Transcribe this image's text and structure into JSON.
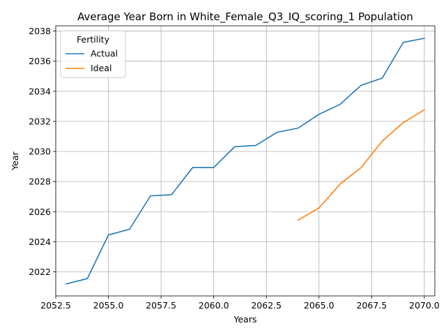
{
  "chart_data": {
    "type": "line",
    "title": "Average Year Born in White_Female_Q3_IQ_scoring_1 Population",
    "xlabel": "Years",
    "ylabel": "Year",
    "xlim": [
      2052.5,
      2070.5
    ],
    "ylim": [
      2020.4,
      2038.35
    ],
    "xticks": [
      2052.5,
      2055.0,
      2057.5,
      2060.0,
      2062.5,
      2065.0,
      2067.5,
      2070.0
    ],
    "xtick_labels": [
      "2052.5",
      "2055.0",
      "2057.5",
      "2060.0",
      "2062.5",
      "2065.0",
      "2067.5",
      "2070.0"
    ],
    "yticks": [
      2022,
      2024,
      2026,
      2028,
      2030,
      2032,
      2034,
      2036,
      2038
    ],
    "ytick_labels": [
      "2022",
      "2024",
      "2026",
      "2028",
      "2030",
      "2032",
      "2034",
      "2036",
      "2038"
    ],
    "grid": true,
    "legend": {
      "title": "Fertility",
      "placement": "top-left"
    },
    "series": [
      {
        "name": "Actual",
        "color": "#1f77b4",
        "x": [
          2053,
          2054,
          2055,
          2056,
          2057,
          2058,
          2059,
          2060,
          2061,
          2062,
          2063,
          2064,
          2065,
          2066,
          2067,
          2068,
          2069,
          2070
        ],
        "y": [
          2021.2,
          2021.55,
          2024.45,
          2024.83,
          2027.05,
          2027.13,
          2028.93,
          2028.93,
          2030.32,
          2030.4,
          2031.27,
          2031.55,
          2032.47,
          2033.13,
          2034.4,
          2034.87,
          2037.25,
          2037.52
        ]
      },
      {
        "name": "Ideal",
        "color": "#ff7f0e",
        "x": [
          2064,
          2065,
          2066,
          2067,
          2068,
          2069,
          2070
        ],
        "y": [
          2025.43,
          2026.25,
          2027.83,
          2028.93,
          2030.68,
          2031.92,
          2032.77
        ]
      }
    ]
  }
}
